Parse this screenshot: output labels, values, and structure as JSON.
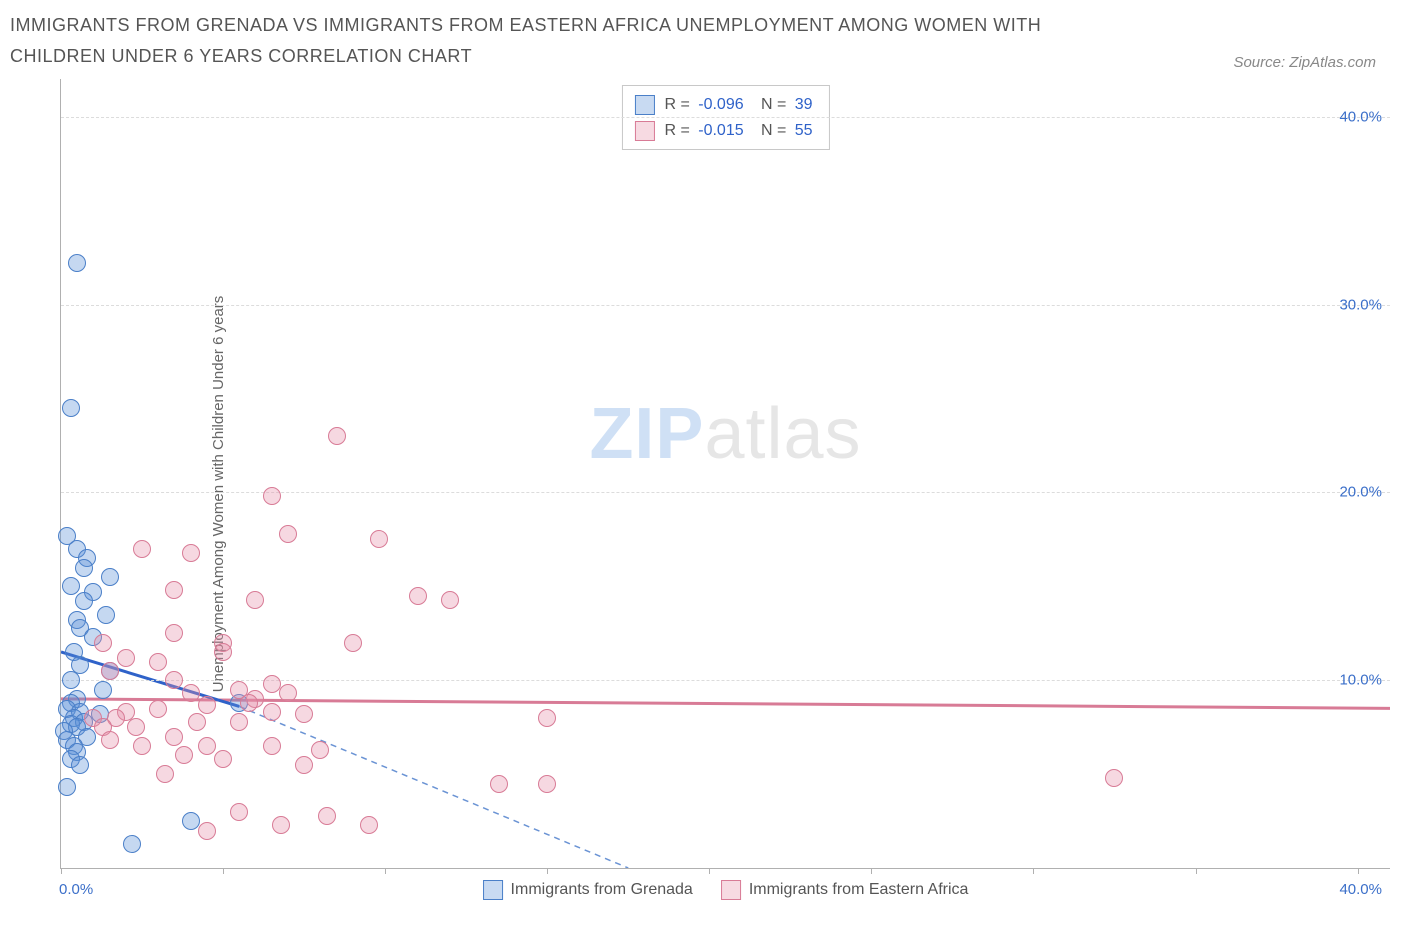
{
  "title": "IMMIGRANTS FROM GRENADA VS IMMIGRANTS FROM EASTERN AFRICA UNEMPLOYMENT AMONG WOMEN WITH CHILDREN UNDER 6 YEARS CORRELATION CHART",
  "source": "Source: ZipAtlas.com",
  "ylabel": "Unemployment Among Women with Children Under 6 years",
  "watermark": {
    "part1": "ZIP",
    "part2": "atlas"
  },
  "chart": {
    "type": "scatter",
    "xlim": [
      0,
      41
    ],
    "ylim": [
      0,
      42
    ],
    "xtick_positions": [
      0,
      5,
      10,
      15,
      20,
      25,
      30,
      35,
      40
    ],
    "ytick_positions": [
      10,
      20,
      30,
      40
    ],
    "ytick_labels": [
      "10.0%",
      "20.0%",
      "30.0%",
      "40.0%"
    ],
    "xtick_labels": {
      "min": "0.0%",
      "max": "40.0%"
    },
    "background_color": "#ffffff",
    "grid_color": "#dcdcdc",
    "marker_radius": 9,
    "marker_opacity": 0.35,
    "series": [
      {
        "name": "Immigrants from Grenada",
        "color": "#5a8fd8",
        "stroke": "#4a7fc8",
        "R": "-0.096",
        "N": "39",
        "trend": {
          "x1": 0,
          "y1": 11.5,
          "x2": 5.5,
          "y2": 8.6,
          "dash_x2": 17.5,
          "dash_y2": 0,
          "stroke_width": 3
        },
        "points": [
          [
            0.5,
            32.2
          ],
          [
            0.3,
            24.5
          ],
          [
            0.2,
            17.7
          ],
          [
            0.5,
            17.0
          ],
          [
            0.8,
            16.5
          ],
          [
            0.7,
            16.0
          ],
          [
            1.5,
            15.5
          ],
          [
            0.3,
            15.0
          ],
          [
            1.0,
            14.7
          ],
          [
            0.7,
            14.2
          ],
          [
            1.4,
            13.5
          ],
          [
            0.5,
            13.2
          ],
          [
            0.6,
            12.8
          ],
          [
            1.0,
            12.3
          ],
          [
            0.4,
            11.5
          ],
          [
            0.6,
            10.8
          ],
          [
            1.5,
            10.5
          ],
          [
            0.3,
            10.0
          ],
          [
            1.3,
            9.5
          ],
          [
            0.5,
            9.0
          ],
          [
            0.3,
            8.8
          ],
          [
            0.2,
            8.5
          ],
          [
            0.6,
            8.3
          ],
          [
            1.2,
            8.2
          ],
          [
            0.4,
            8.0
          ],
          [
            0.7,
            7.8
          ],
          [
            0.3,
            7.7
          ],
          [
            0.5,
            7.5
          ],
          [
            0.1,
            7.3
          ],
          [
            0.8,
            7.0
          ],
          [
            0.2,
            6.8
          ],
          [
            0.4,
            6.5
          ],
          [
            0.5,
            6.2
          ],
          [
            0.3,
            5.8
          ],
          [
            0.6,
            5.5
          ],
          [
            0.2,
            4.3
          ],
          [
            4.0,
            2.5
          ],
          [
            2.2,
            1.3
          ],
          [
            5.5,
            8.8
          ]
        ]
      },
      {
        "name": "Immigrants from Eastern Africa",
        "color": "#e68fa8",
        "stroke": "#d87b96",
        "R": "-0.015",
        "N": "55",
        "trend": {
          "x1": 0,
          "y1": 9.0,
          "x2": 41,
          "y2": 8.5,
          "stroke_width": 3
        },
        "points": [
          [
            8.5,
            23.0
          ],
          [
            6.5,
            19.8
          ],
          [
            7.0,
            17.8
          ],
          [
            9.8,
            17.5
          ],
          [
            2.5,
            17.0
          ],
          [
            4.0,
            16.8
          ],
          [
            3.5,
            14.8
          ],
          [
            6.0,
            14.3
          ],
          [
            11.0,
            14.5
          ],
          [
            12.0,
            14.3
          ],
          [
            3.5,
            12.5
          ],
          [
            5.0,
            12.0
          ],
          [
            9.0,
            12.0
          ],
          [
            5.0,
            11.5
          ],
          [
            1.3,
            12.0
          ],
          [
            2.0,
            11.2
          ],
          [
            3.0,
            11.0
          ],
          [
            1.5,
            10.5
          ],
          [
            3.5,
            10.0
          ],
          [
            6.5,
            9.8
          ],
          [
            5.5,
            9.5
          ],
          [
            4.0,
            9.3
          ],
          [
            6.0,
            9.0
          ],
          [
            7.0,
            9.3
          ],
          [
            5.8,
            8.8
          ],
          [
            4.5,
            8.7
          ],
          [
            3.0,
            8.5
          ],
          [
            2.0,
            8.3
          ],
          [
            6.5,
            8.3
          ],
          [
            7.5,
            8.2
          ],
          [
            1.0,
            8.0
          ],
          [
            1.7,
            8.0
          ],
          [
            4.2,
            7.8
          ],
          [
            5.5,
            7.8
          ],
          [
            15.0,
            8.0
          ],
          [
            1.3,
            7.5
          ],
          [
            2.3,
            7.5
          ],
          [
            3.5,
            7.0
          ],
          [
            1.5,
            6.8
          ],
          [
            2.5,
            6.5
          ],
          [
            4.5,
            6.5
          ],
          [
            6.5,
            6.5
          ],
          [
            8.0,
            6.3
          ],
          [
            3.8,
            6.0
          ],
          [
            5.0,
            5.8
          ],
          [
            7.5,
            5.5
          ],
          [
            3.2,
            5.0
          ],
          [
            13.5,
            4.5
          ],
          [
            15.0,
            4.5
          ],
          [
            32.5,
            4.8
          ],
          [
            5.5,
            3.0
          ],
          [
            9.5,
            2.3
          ],
          [
            4.5,
            2.0
          ],
          [
            6.8,
            2.3
          ],
          [
            8.2,
            2.8
          ]
        ]
      }
    ]
  },
  "legend_labels": {
    "R": "R =",
    "N": "N ="
  }
}
